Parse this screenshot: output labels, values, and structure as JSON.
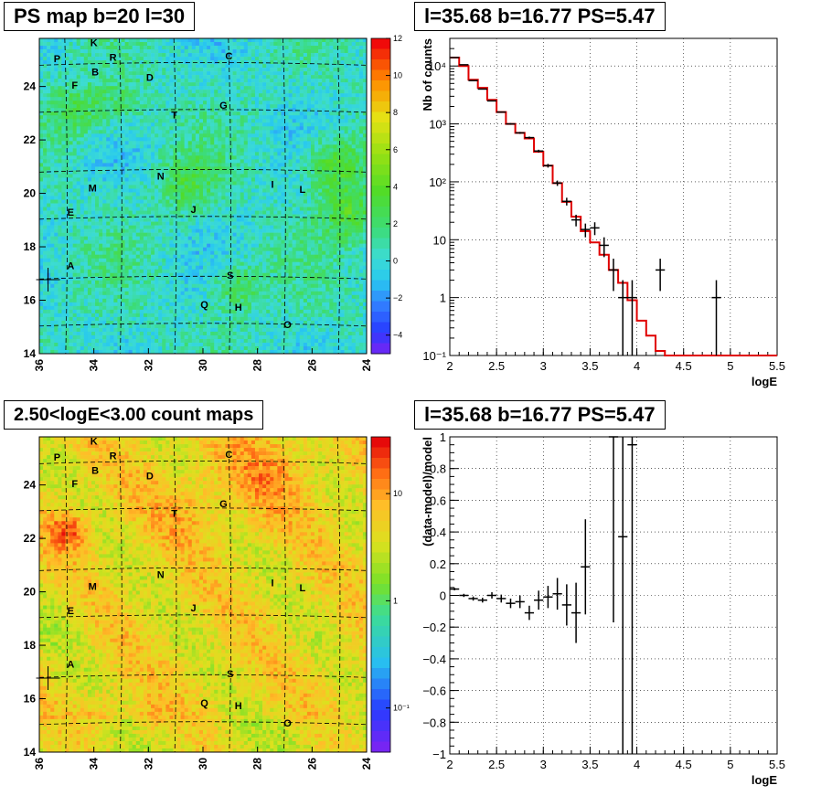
{
  "panels": {
    "map1_title": "PS map b=20 l=30",
    "map2_title": "2.50<logE<3.00 count maps",
    "spec_title": "l=35.68 b=16.77 PS=5.47",
    "resid_title": "l=35.68 b=16.77 PS=5.47"
  },
  "map_labels": [
    {
      "t": "K",
      "l": 34.0,
      "b": 25.65
    },
    {
      "t": "P",
      "l": 35.35,
      "b": 25.05
    },
    {
      "t": "R",
      "l": 33.3,
      "b": 25.1
    },
    {
      "t": "C",
      "l": 29.05,
      "b": 25.15
    },
    {
      "t": "B",
      "l": 33.95,
      "b": 24.55
    },
    {
      "t": "D",
      "l": 31.95,
      "b": 24.35
    },
    {
      "t": "F",
      "l": 34.7,
      "b": 24.05
    },
    {
      "t": "G",
      "l": 29.25,
      "b": 23.3
    },
    {
      "t": "T",
      "l": 31.05,
      "b": 22.95
    },
    {
      "t": "N",
      "l": 31.55,
      "b": 20.65
    },
    {
      "t": "I",
      "l": 27.45,
      "b": 20.35
    },
    {
      "t": "L",
      "l": 26.35,
      "b": 20.15
    },
    {
      "t": "M",
      "l": 34.05,
      "b": 20.2
    },
    {
      "t": "J",
      "l": 30.35,
      "b": 19.4
    },
    {
      "t": "E",
      "l": 34.85,
      "b": 19.3
    },
    {
      "t": "A",
      "l": 34.85,
      "b": 17.3
    },
    {
      "t": "S",
      "l": 29.0,
      "b": 16.95
    },
    {
      "t": "Q",
      "l": 29.95,
      "b": 15.85
    },
    {
      "t": "H",
      "l": 28.7,
      "b": 15.75
    },
    {
      "t": "O",
      "l": 26.9,
      "b": 15.1
    }
  ],
  "source_marker": {
    "l": 35.68,
    "b": 16.77
  },
  "map1_palette_ticks": [
    "12",
    "10",
    "8",
    "6",
    "4",
    "2",
    "0",
    "−2",
    "−4"
  ],
  "map2_palette_ticks": [
    "10",
    "1",
    "10⁻¹"
  ],
  "chart_data": [
    {
      "type": "heatmap",
      "title": "PS map b=20 l=30",
      "xlabel": "",
      "ylabel": "",
      "xlim": [
        36,
        24
      ],
      "ylim": [
        14,
        25.8
      ],
      "x_ticks": [
        "36",
        "34",
        "32",
        "30",
        "28",
        "26",
        "24"
      ],
      "y_ticks": [
        "14",
        "16",
        "18",
        "20",
        "22",
        "24"
      ],
      "zlim": [
        -5,
        12
      ],
      "palette_ticks": [
        "12",
        "10",
        "8",
        "6",
        "4",
        "2",
        "0",
        "−2",
        "−4"
      ]
    },
    {
      "type": "heatmap",
      "title": "2.50<logE<3.00 count maps",
      "xlabel": "",
      "ylabel": "",
      "xlim": [
        36,
        24
      ],
      "ylim": [
        14,
        25.8
      ],
      "x_ticks": [
        "36",
        "34",
        "32",
        "30",
        "28",
        "26",
        "24"
      ],
      "y_ticks": [
        "14",
        "16",
        "18",
        "20",
        "22",
        "24"
      ],
      "zscale": "log",
      "palette_ticks": [
        "10",
        "1",
        "10⁻¹"
      ]
    },
    {
      "type": "line",
      "title": "l=35.68 b=16.77 PS=5.47",
      "xlabel": "logE",
      "ylabel": "Nb of counts",
      "xlim": [
        2,
        5.5
      ],
      "ylim": [
        0.1,
        30000
      ],
      "y_scale": "log",
      "x_ticks": [
        "2",
        "2.5",
        "3",
        "3.5",
        "4",
        "4.5",
        "5",
        "5.5"
      ],
      "y_ticks": [
        "10⁻¹",
        "1",
        "10",
        "10²",
        "10³",
        "10⁴"
      ],
      "model_steps": [
        [
          2.0,
          14000
        ],
        [
          2.1,
          10000
        ],
        [
          2.2,
          5800
        ],
        [
          2.3,
          4200
        ],
        [
          2.4,
          2600
        ],
        [
          2.5,
          1600
        ],
        [
          2.6,
          1000
        ],
        [
          2.7,
          700
        ],
        [
          2.8,
          560
        ],
        [
          2.9,
          330
        ],
        [
          3.0,
          190
        ],
        [
          3.1,
          95
        ],
        [
          3.2,
          45
        ],
        [
          3.3,
          25
        ],
        [
          3.4,
          14
        ],
        [
          3.5,
          9
        ],
        [
          3.6,
          5.5
        ],
        [
          3.7,
          3
        ],
        [
          3.8,
          1.8
        ],
        [
          3.9,
          0.9
        ],
        [
          4.0,
          0.4
        ],
        [
          4.1,
          0.22
        ],
        [
          4.2,
          0.12
        ],
        [
          4.3,
          0.1
        ],
        [
          5.5,
          0.1
        ]
      ],
      "data_points": [
        {
          "x": 2.05,
          "y": 14000,
          "e": 120
        },
        {
          "x": 2.15,
          "y": 10500,
          "e": 100
        },
        {
          "x": 2.25,
          "y": 5600,
          "e": 75
        },
        {
          "x": 2.35,
          "y": 4000,
          "e": 63
        },
        {
          "x": 2.45,
          "y": 2500,
          "e": 50
        },
        {
          "x": 2.55,
          "y": 1600,
          "e": 40
        },
        {
          "x": 2.65,
          "y": 1000,
          "e": 32
        },
        {
          "x": 2.75,
          "y": 700,
          "e": 26
        },
        {
          "x": 2.85,
          "y": 580,
          "e": 24
        },
        {
          "x": 2.95,
          "y": 340,
          "e": 18
        },
        {
          "x": 3.05,
          "y": 190,
          "e": 14
        },
        {
          "x": 3.15,
          "y": 95,
          "e": 10
        },
        {
          "x": 3.25,
          "y": 46,
          "e": 7
        },
        {
          "x": 3.35,
          "y": 22,
          "e": 5
        },
        {
          "x": 3.45,
          "y": 15,
          "e": 4
        },
        {
          "x": 3.55,
          "y": 16,
          "e": 4
        },
        {
          "x": 3.65,
          "y": 8,
          "e": 3
        },
        {
          "x": 3.75,
          "y": 3,
          "e": 1.7
        },
        {
          "x": 3.85,
          "y": 1,
          "e": 1
        },
        {
          "x": 3.95,
          "y": 1,
          "e": 1
        },
        {
          "x": 4.25,
          "y": 3,
          "e": 1.7
        },
        {
          "x": 4.85,
          "y": 1,
          "e": 1
        }
      ]
    },
    {
      "type": "scatter",
      "title": "l=35.68 b=16.77 PS=5.47",
      "xlabel": "logE",
      "ylabel": "(data-model)/model",
      "xlim": [
        2,
        5.5
      ],
      "ylim": [
        -1,
        1
      ],
      "x_ticks": [
        "2",
        "2.5",
        "3",
        "3.5",
        "4",
        "4.5",
        "5",
        "5.5"
      ],
      "y_ticks": [
        "−1",
        "−0.8",
        "−0.6",
        "−0.4",
        "−0.2",
        "0",
        "0.2",
        "0.4",
        "0.6",
        "0.8",
        "1"
      ],
      "points": [
        {
          "x": 2.05,
          "y": 0.04,
          "e": 0.008
        },
        {
          "x": 2.15,
          "y": 0.0,
          "e": 0.01
        },
        {
          "x": 2.25,
          "y": -0.02,
          "e": 0.013
        },
        {
          "x": 2.35,
          "y": -0.03,
          "e": 0.015
        },
        {
          "x": 2.45,
          "y": 0.0,
          "e": 0.02
        },
        {
          "x": 2.55,
          "y": -0.02,
          "e": 0.025
        },
        {
          "x": 2.65,
          "y": -0.05,
          "e": 0.03
        },
        {
          "x": 2.75,
          "y": -0.04,
          "e": 0.04
        },
        {
          "x": 2.85,
          "y": -0.11,
          "e": 0.045
        },
        {
          "x": 2.95,
          "y": -0.03,
          "e": 0.06
        },
        {
          "x": 3.05,
          "y": -0.01,
          "e": 0.07
        },
        {
          "x": 3.15,
          "y": 0.01,
          "e": 0.1
        },
        {
          "x": 3.25,
          "y": -0.06,
          "e": 0.13
        },
        {
          "x": 3.35,
          "y": -0.11,
          "e": 0.19
        },
        {
          "x": 3.45,
          "y": 0.18,
          "e": 0.3
        },
        {
          "x": 3.75,
          "y": 1.0,
          "e": 1.17
        },
        {
          "x": 3.85,
          "y": 0.37,
          "e": 1.4
        },
        {
          "x": 3.95,
          "y": 0.95,
          "e": 2.0
        }
      ]
    }
  ]
}
